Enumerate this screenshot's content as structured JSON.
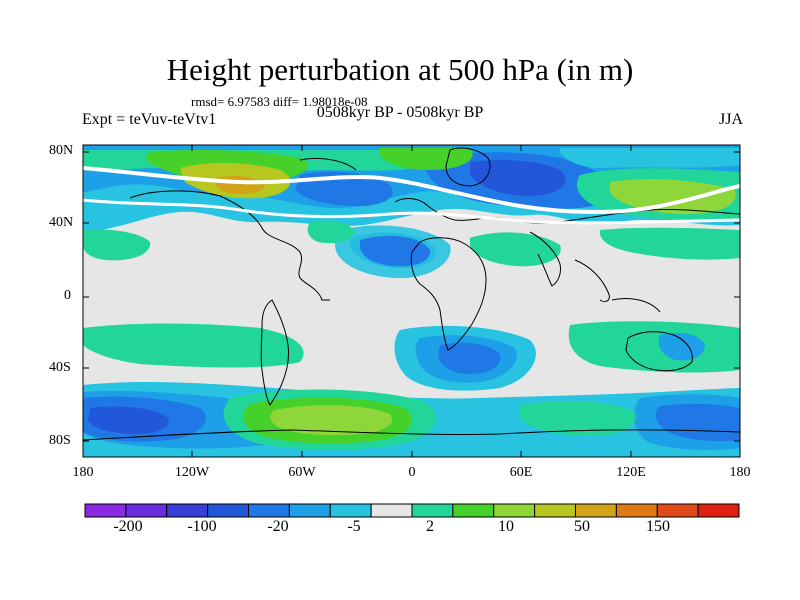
{
  "title": "Height perturbation at 500 hPa (in m)",
  "stats": "rmsd= 6.97583 diff= 1.98018e-08",
  "period": "0508kyr BP - 0508kyr BP",
  "experiment": "Expt = teVuv-teVtv1",
  "season": "JJA",
  "map": {
    "lat_labels": [
      "80N",
      "40N",
      "0",
      "40S",
      "80S"
    ],
    "lon_labels": [
      "180",
      "120W",
      "60W",
      "0",
      "60E",
      "120E",
      "180"
    ]
  },
  "colorbar": {
    "colors": [
      "#8a2be2",
      "#6a2ee0",
      "#3a3fd9",
      "#2157d8",
      "#1f78e6",
      "#1ea0e8",
      "#27c3e0",
      "#e6e6e6",
      "#22d69a",
      "#45d12a",
      "#8fd63a",
      "#b6c81f",
      "#d2a317",
      "#e07817",
      "#e04a17",
      "#e01f10"
    ],
    "labels": [
      "-200",
      "-100",
      "-20",
      "-5",
      "2",
      "10",
      "50",
      "150"
    ]
  },
  "fill_colors": {
    "neutral": "#e6e6e6",
    "cyan": "#27c3e0",
    "lightblue": "#1ea0e8",
    "blue": "#1f78e6",
    "darkblue": "#2157d8",
    "mint": "#22d69a",
    "green": "#45d12a",
    "yellowgreen": "#8fd63a",
    "olive": "#b6c81f",
    "orange": "#d2a317"
  }
}
